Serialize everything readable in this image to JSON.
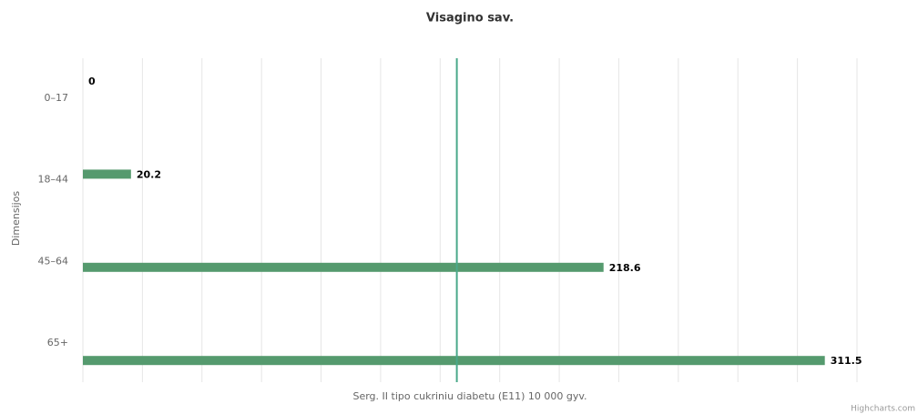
{
  "chart_data": {
    "type": "bar",
    "title": "Visagino sav.",
    "categories": [
      "0–17",
      "18–44",
      "45–64",
      "65+"
    ],
    "values": [
      0,
      20.2,
      218.6,
      311.5
    ],
    "color": "#559a6e",
    "xlabel": "Serg. II tipo cukriniu diabetu (E11) 10 000 gyv.",
    "ylabel": "Dimensijos",
    "xlim": [
      0,
      325
    ],
    "xticks": [
      0,
      25,
      50,
      75,
      100,
      125,
      150,
      175,
      200,
      225,
      250,
      275,
      300,
      325
    ],
    "grid": true,
    "reference_line": {
      "value": 157,
      "color": "#4aa98a"
    },
    "credits": "Highcharts.com"
  }
}
